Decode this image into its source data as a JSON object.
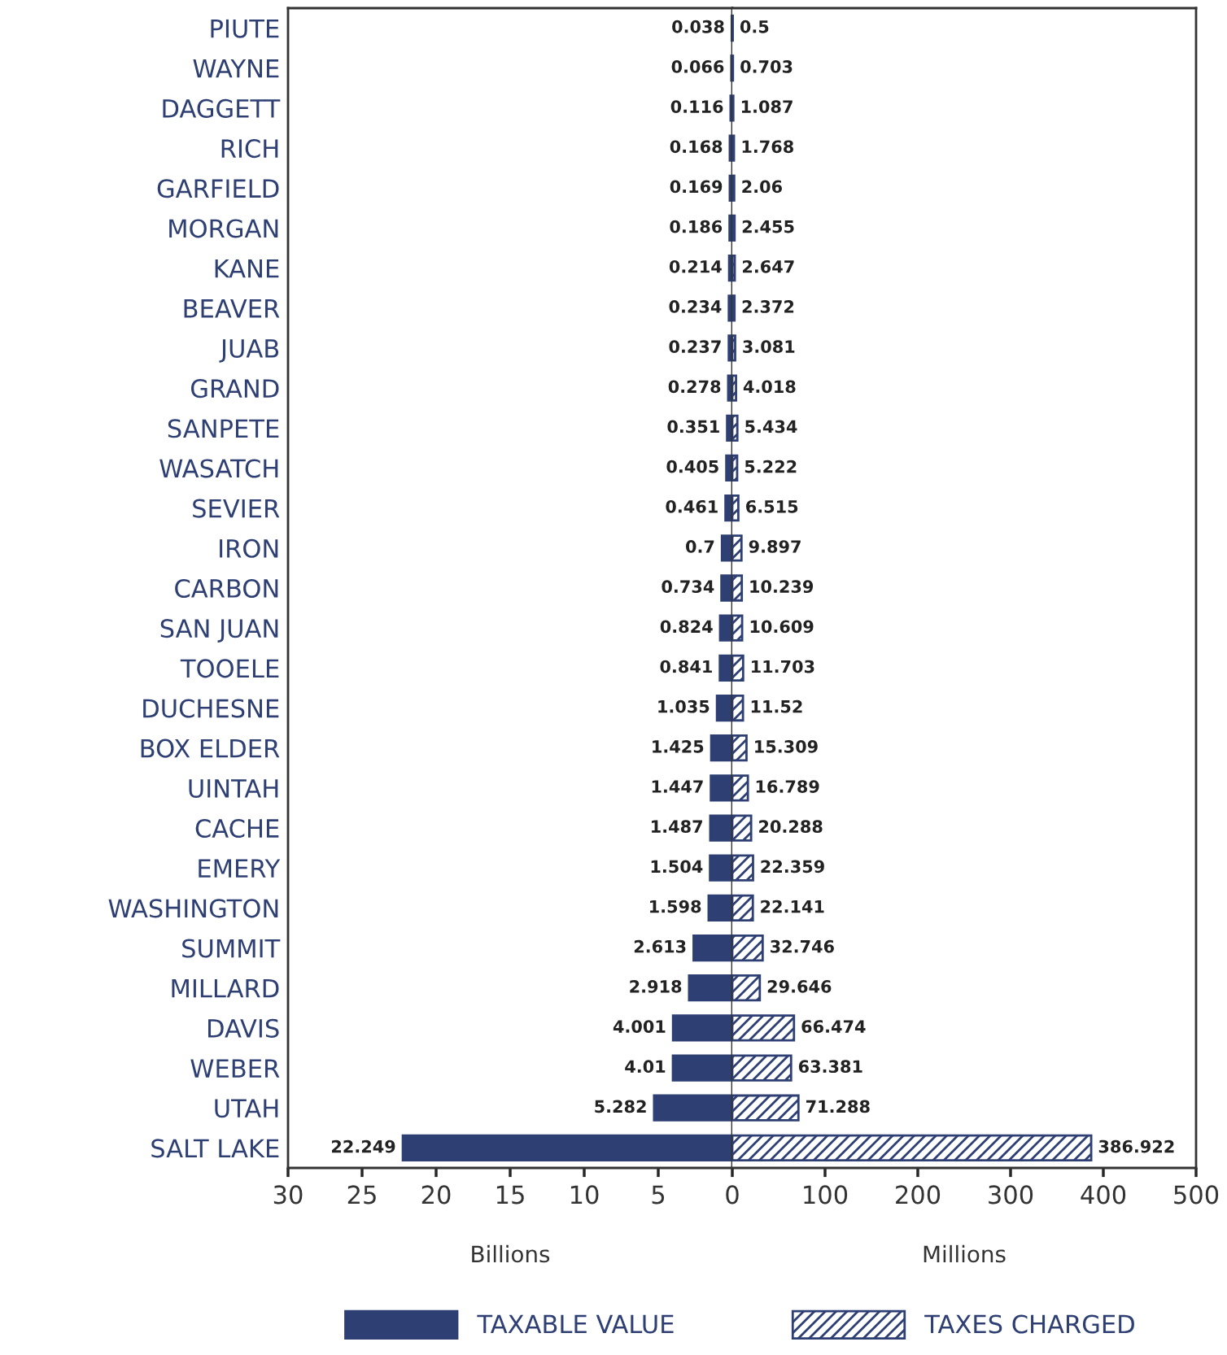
{
  "chart_data": [
    {
      "type": "bar",
      "orientation": "horizontal",
      "xlabel": "Billions",
      "legend": "bottom",
      "data_labels": true,
      "categories": [
        "PIUTE",
        "WAYNE",
        "DAGGETT",
        "RICH",
        "GARFIELD",
        "MORGAN",
        "KANE",
        "BEAVER",
        "JUAB",
        "GRAND",
        "SANPETE",
        "WASATCH",
        "SEVIER",
        "IRON",
        "CARBON",
        "SAN JUAN",
        "TOOELE",
        "DUCHESNE",
        "BOX ELDER",
        "UINTAH",
        "CACHE",
        "EMERY",
        "WASHINGTON",
        "SUMMIT",
        "MILLARD",
        "DAVIS",
        "WEBER",
        "UTAH",
        "SALT LAKE"
      ],
      "xlim": [
        30,
        0
      ],
      "xticks": [
        30,
        25,
        20,
        15,
        10,
        5,
        0
      ],
      "series": [
        {
          "name": "TAXABLE VALUE",
          "color": "#2e3f74",
          "values": [
            0.038,
            0.066,
            0.116,
            0.168,
            0.169,
            0.186,
            0.214,
            0.234,
            0.237,
            0.278,
            0.351,
            0.405,
            0.461,
            0.7,
            0.734,
            0.824,
            0.841,
            1.035,
            1.425,
            1.447,
            1.487,
            1.504,
            1.598,
            2.613,
            2.918,
            4.001,
            4.01,
            5.282,
            22.249
          ]
        }
      ]
    },
    {
      "type": "bar",
      "orientation": "horizontal",
      "xlabel": "Millions",
      "legend": "bottom",
      "data_labels": true,
      "tick_labels": "x",
      "xlim": [
        0,
        500
      ],
      "xticks": [
        100,
        200,
        300,
        400,
        500
      ],
      "series": [
        {
          "name": "TAXES CHARGED",
          "color": "#2e3f74",
          "values": [
            0.5,
            0.703,
            1.087,
            1.768,
            2.06,
            2.455,
            2.647,
            2.372,
            3.081,
            4.018,
            5.434,
            5.222,
            6.515,
            9.897,
            10.239,
            10.609,
            11.703,
            11.52,
            15.309,
            16.789,
            20.288,
            22.359,
            22.141,
            32.746,
            29.646,
            66.474,
            63.381,
            71.288,
            386.922
          ]
        }
      ]
    }
  ]
}
